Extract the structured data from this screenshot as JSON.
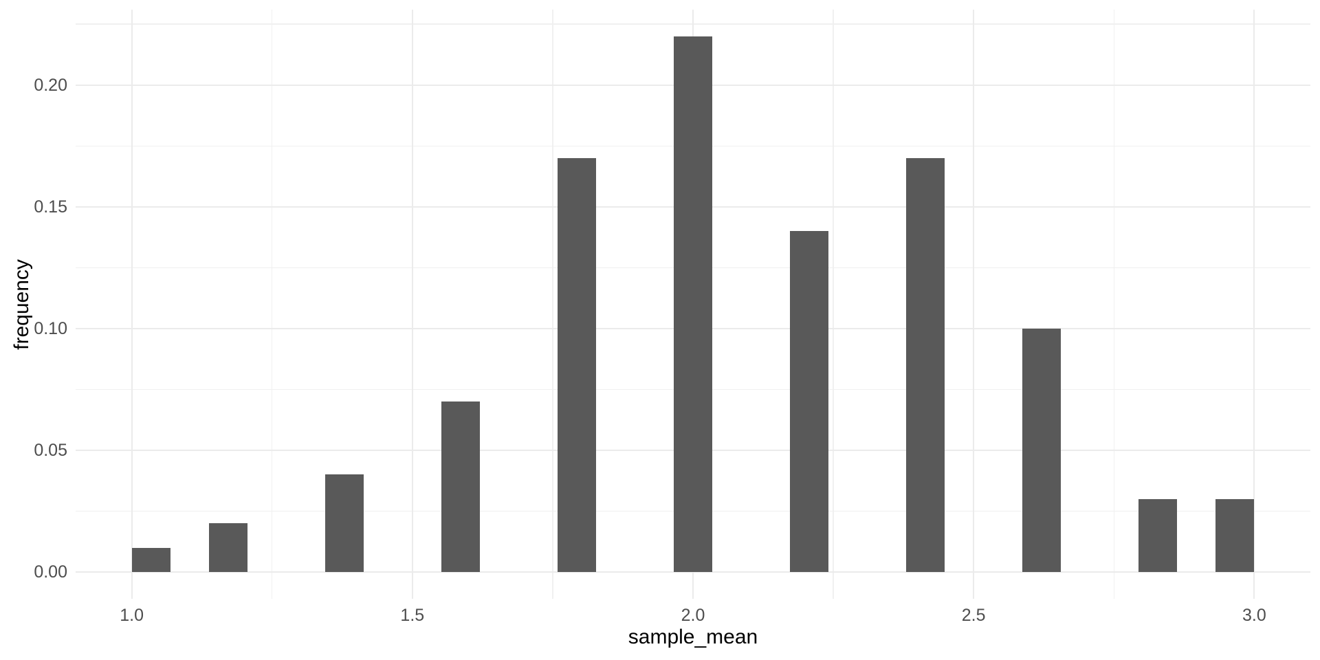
{
  "chart": {
    "x_axis_title": "sample_mean",
    "y_axis_title": "frequency"
  },
  "chart_data": {
    "type": "bar",
    "subtype": "histogram",
    "title": "",
    "xlabel": "sample_mean",
    "ylabel": "frequency",
    "categories": [
      1.0,
      1.2,
      1.4,
      1.6,
      1.8,
      2.0,
      2.2,
      2.4,
      2.6,
      2.8,
      3.0
    ],
    "values": [
      0.01,
      0.02,
      0.04,
      0.07,
      0.17,
      0.22,
      0.14,
      0.17,
      0.1,
      0.03,
      0.03
    ],
    "bar_centers": [
      1.0345,
      1.1724,
      1.3793,
      1.5862,
      1.7931,
      2.0,
      2.2069,
      2.4138,
      2.6207,
      2.8276,
      2.9655
    ],
    "bin_width": 0.06897,
    "x_ticks": {
      "values": [
        1.0,
        1.5,
        2.0,
        2.5,
        3.0
      ],
      "labels": [
        "1.0",
        "1.5",
        "2.0",
        "2.5",
        "3.0"
      ]
    },
    "y_ticks": {
      "values": [
        0.0,
        0.05,
        0.1,
        0.15,
        0.2
      ],
      "labels": [
        "0.00",
        "0.05",
        "0.10",
        "0.15",
        "0.20"
      ]
    },
    "x_minor_ticks": [
      1.25,
      1.75,
      2.25,
      2.75
    ],
    "y_minor_ticks": [
      0.025,
      0.075,
      0.125,
      0.175,
      0.225
    ],
    "xlim": [
      0.9,
      3.1
    ],
    "ylim": [
      -0.011,
      0.231
    ],
    "grid": true,
    "legend": false,
    "colors": {
      "bar_fill": "#595959",
      "grid_major": "#EBEBEB",
      "grid_minor": "#F0F0F0",
      "tick_label": "#4D4D4D",
      "axis_title": "#000000",
      "background": "#FFFFFF"
    }
  }
}
